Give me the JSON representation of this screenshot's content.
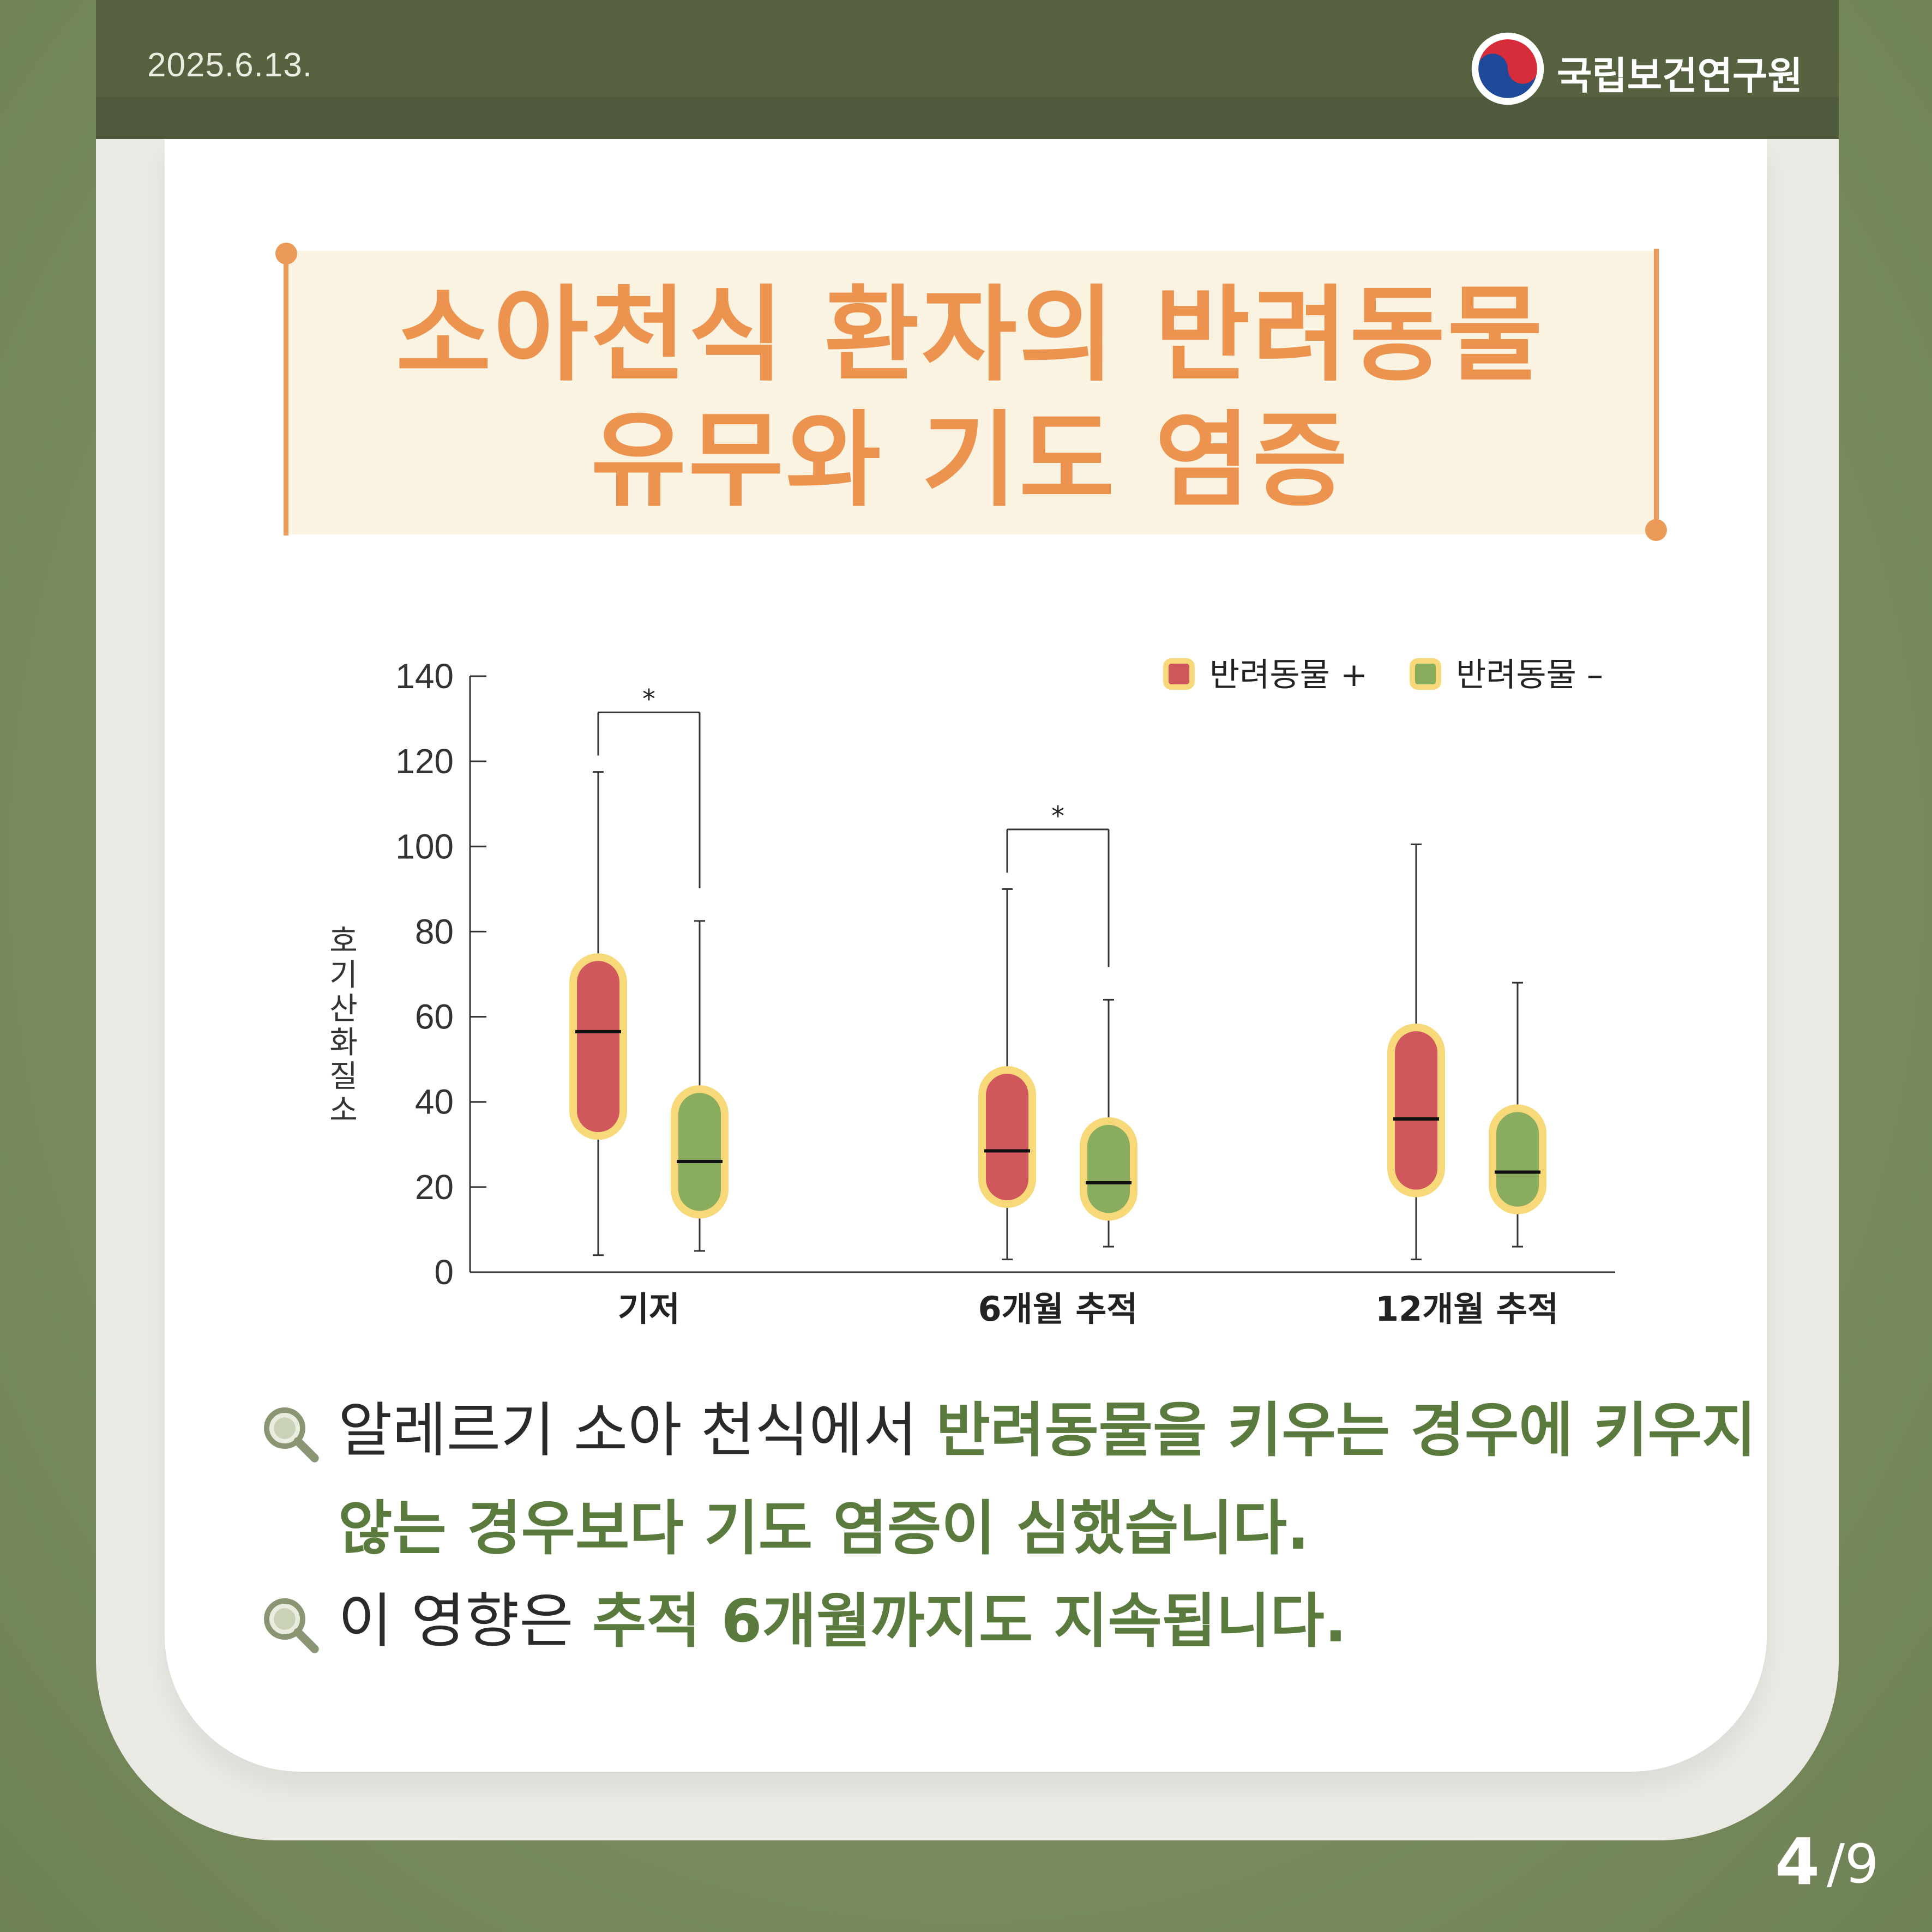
{
  "header": {
    "date": "2025.6.13.",
    "org_name": "국립보건연구원",
    "logo_icon": "taegeuk-logo-icon"
  },
  "title": {
    "line1": "소아천식 환자의 반려동물",
    "line2": "유무와 기도 염증"
  },
  "chart_data": {
    "type": "boxplot",
    "ylabel": "호기산화질소",
    "ylim": [
      0,
      140
    ],
    "yticks": [
      "0",
      "20",
      "40",
      "60",
      "80",
      "100",
      "120",
      "140"
    ],
    "categories": [
      "기저",
      "6개월 추적",
      "12개월 추적"
    ],
    "legend_position": "top-right",
    "series": [
      {
        "name": "반려동물 +",
        "color": "#d0585d",
        "boxes": [
          {
            "min": 4,
            "q1": 32,
            "median": 56.5,
            "q3": 74,
            "max": 117.5
          },
          {
            "min": 3,
            "q1": 16,
            "median": 28.5,
            "q3": 47.5,
            "max": 90
          },
          {
            "min": 3,
            "q1": 18.5,
            "median": 36,
            "q3": 57.5,
            "max": 100.5
          }
        ]
      },
      {
        "name": "반려동물 –",
        "color": "#8aac5e",
        "boxes": [
          {
            "min": 5,
            "q1": 13.5,
            "median": 26,
            "q3": 43,
            "max": 82.5
          },
          {
            "min": 6,
            "q1": 13,
            "median": 21,
            "q3": 35.5,
            "max": 64
          },
          {
            "min": 6,
            "q1": 14.5,
            "median": 23.5,
            "q3": 38.5,
            "max": 68
          }
        ]
      }
    ],
    "significance": [
      {
        "category_index": 0,
        "label": "*"
      },
      {
        "category_index": 1,
        "label": "*"
      }
    ],
    "box_outline_color": "#f7d97a"
  },
  "findings": {
    "b1_plain": "알레르기 소아 천식에서 ",
    "b1_highlight": "반려동물을 키우는 경우에 키우지",
    "b1_line2_highlight": "않는 경우보다 기도 염증이 심했습니다.",
    "b2_plain": "이 영향은 ",
    "b2_highlight": "추적 6개월까지도 지속됩니다.",
    "icon": "magnifier-icon"
  },
  "pagination": {
    "current": "4",
    "separator_total": "/9"
  }
}
